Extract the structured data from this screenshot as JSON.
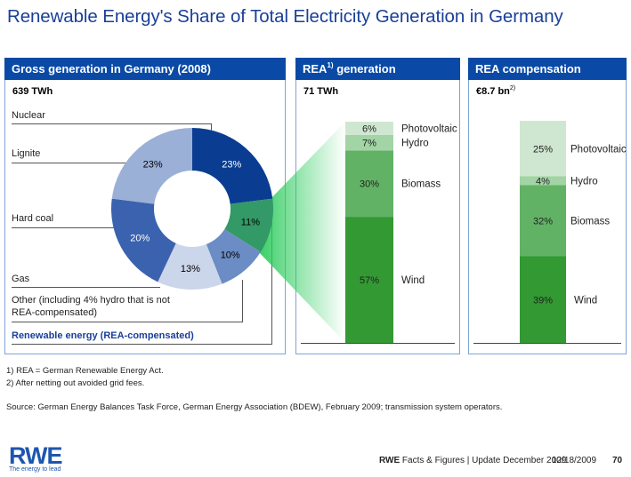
{
  "title": "Renewable Energy's Share of Total Electricity Generation in Germany",
  "panels": {
    "gross": {
      "header": "Gross generation in Germany (2008)",
      "total": "639 TWh"
    },
    "rea_gen": {
      "header_main": "REA",
      "header_sup": "1)",
      "header_rest": " generation",
      "total": "71 TWh"
    },
    "rea_comp": {
      "header": "REA compensation",
      "total_main": "€8.7 bn",
      "total_sup": "2)"
    }
  },
  "donut_labels": {
    "nuclear": "Nuclear",
    "lignite": "Lignite",
    "hard_coal": "Hard coal",
    "gas": "Gas",
    "other_line1": "Other (including 4% hydro that is not",
    "other_line2": "REA-compensated)",
    "renewable": "Renewable energy (REA-compensated)"
  },
  "footnotes": {
    "f1": "1) REA = German Renewable Energy Act.",
    "f2": "2) After netting out avoided grid fees.",
    "source": "Source: German Energy Balances Task Force, German Energy Association (BDEW), February 2009; transmission system operators."
  },
  "footer": {
    "brand": "RWE",
    "text": " Facts & Figures | Update December 2009",
    "date": "12/18/2009",
    "page": "70"
  },
  "logo": {
    "name": "RWE",
    "tagline": "The energy to lead"
  },
  "chart_data": [
    {
      "type": "pie",
      "title": "Gross generation in Germany (2008)",
      "subtitle": "639 TWh",
      "donut": true,
      "start": "12 o'clock, clockwise",
      "slices": [
        {
          "name": "Nuclear",
          "value": 23,
          "label": "23%",
          "color": "#0a3d91",
          "label_color": "#ffffff"
        },
        {
          "name": "Renewable energy (REA-compensated)",
          "value": 11,
          "label": "11%",
          "color": "#339966",
          "label_color": "#000000"
        },
        {
          "name": "Other (including 4% hydro that is not REA-compensated)",
          "value": 10,
          "label": "10%",
          "color": "#6b8cc4",
          "label_color": "#000000"
        },
        {
          "name": "Gas",
          "value": 13,
          "label": "13%",
          "color": "#ccd6ea",
          "label_color": "#000000"
        },
        {
          "name": "Hard coal",
          "value": 20,
          "label": "20%",
          "color": "#3a62ae",
          "label_color": "#ffffff"
        },
        {
          "name": "Lignite",
          "value": 23,
          "label": "23%",
          "color": "#9bb0d6",
          "label_color": "#000000"
        }
      ]
    },
    {
      "type": "bar",
      "stacked": true,
      "title": "REA generation",
      "subtitle": "71 TWh",
      "segments": [
        {
          "name": "Wind",
          "value": 57,
          "label": "57%",
          "color": "#339933"
        },
        {
          "name": "Biomass",
          "value": 30,
          "label": "30%",
          "color": "#62b266"
        },
        {
          "name": "Hydro",
          "value": 7,
          "label": "7%",
          "color": "#a2d4a5"
        },
        {
          "name": "Photovoltaic",
          "value": 6,
          "label": "6%",
          "color": "#cfe7d0"
        }
      ]
    },
    {
      "type": "bar",
      "stacked": true,
      "title": "REA compensation",
      "subtitle": "€8.7 bn",
      "segments": [
        {
          "name": "Wind",
          "value": 39,
          "label": "39%",
          "color": "#339933"
        },
        {
          "name": "Biomass",
          "value": 32,
          "label": "32%",
          "color": "#62b266"
        },
        {
          "name": "Hydro",
          "value": 4,
          "label": "4%",
          "color": "#a2d4a5"
        },
        {
          "name": "Photovoltaic",
          "value": 25,
          "label": "25%",
          "color": "#cfe7d0"
        }
      ]
    }
  ]
}
